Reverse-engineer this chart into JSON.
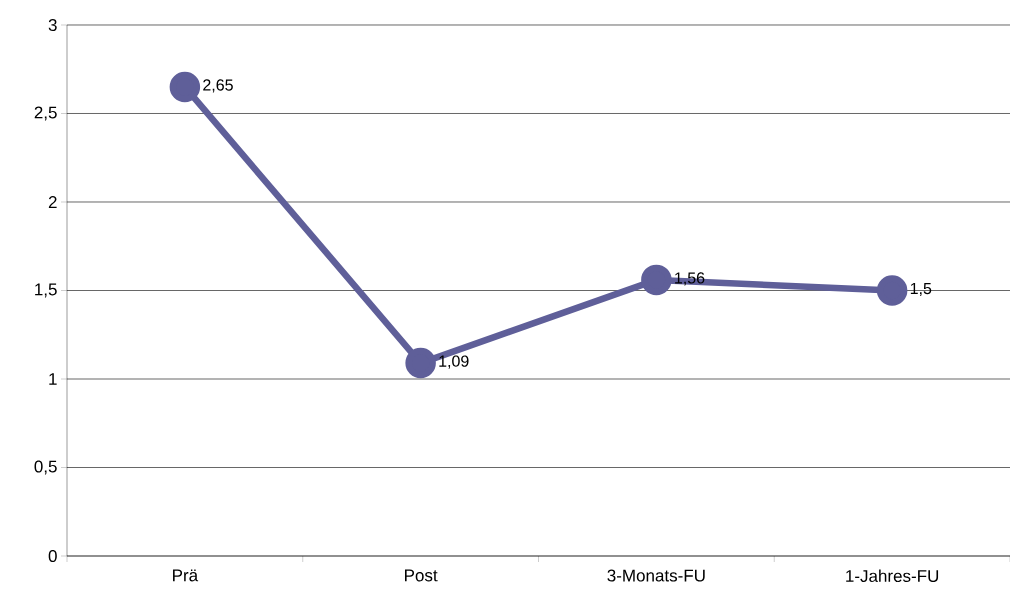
{
  "chart_data": {
    "type": "line",
    "categories": [
      "Prä",
      "Post",
      "3-Monats-FU",
      "1-Jahres-FU"
    ],
    "series": [
      {
        "color": "#5f5f99",
        "values": [
          2.65,
          1.09,
          1.56,
          1.5
        ],
        "value_labels": [
          "2,65",
          "1,09",
          "1,56",
          "1,5"
        ]
      }
    ],
    "ylim": [
      0,
      3
    ],
    "yticks": [
      0,
      {
        "value": 0.5,
        "label": "0,5"
      },
      1,
      {
        "value": 1.5,
        "label": "1,5"
      },
      2,
      {
        "value": 2.5,
        "label": "2,5"
      },
      3
    ],
    "grid": "y",
    "marker": "circle",
    "line_style": "solid",
    "legend": false
  }
}
